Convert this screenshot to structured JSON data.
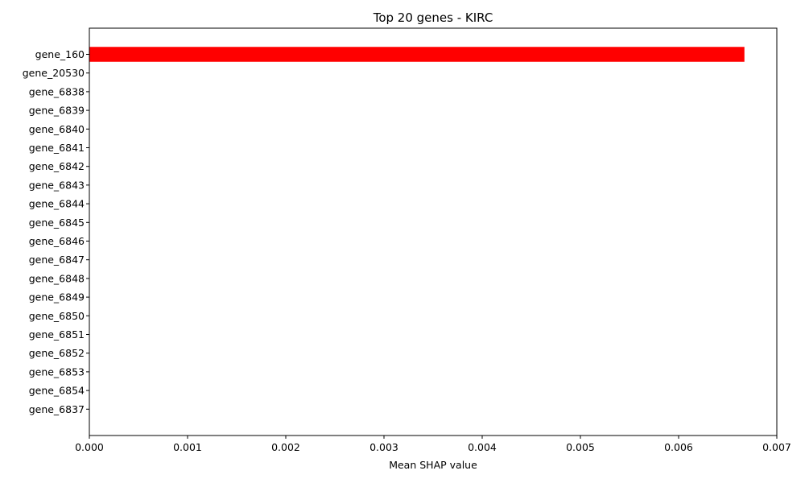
{
  "chart_data": {
    "type": "bar",
    "orientation": "horizontal",
    "title": "Top 20 genes - KIRC",
    "xlabel": "Mean SHAP value",
    "ylabel": "",
    "xlim": [
      0,
      0.007
    ],
    "xticks": [
      0,
      0.001,
      0.002,
      0.003,
      0.004,
      0.005,
      0.006,
      0.007
    ],
    "xtick_labels": [
      "0.000",
      "0.001",
      "0.002",
      "0.003",
      "0.004",
      "0.005",
      "0.006",
      "0.007"
    ],
    "categories": [
      "gene_160",
      "gene_20530",
      "gene_6838",
      "gene_6839",
      "gene_6840",
      "gene_6841",
      "gene_6842",
      "gene_6843",
      "gene_6844",
      "gene_6845",
      "gene_6846",
      "gene_6847",
      "gene_6848",
      "gene_6849",
      "gene_6850",
      "gene_6851",
      "gene_6852",
      "gene_6853",
      "gene_6854",
      "gene_6837"
    ],
    "values": [
      0.00667,
      0,
      0,
      0,
      0,
      0,
      0,
      0,
      0,
      0,
      0,
      0,
      0,
      0,
      0,
      0,
      0,
      0,
      0,
      0
    ],
    "bar_color": "#ff0000",
    "grid": false,
    "legend": "none"
  }
}
